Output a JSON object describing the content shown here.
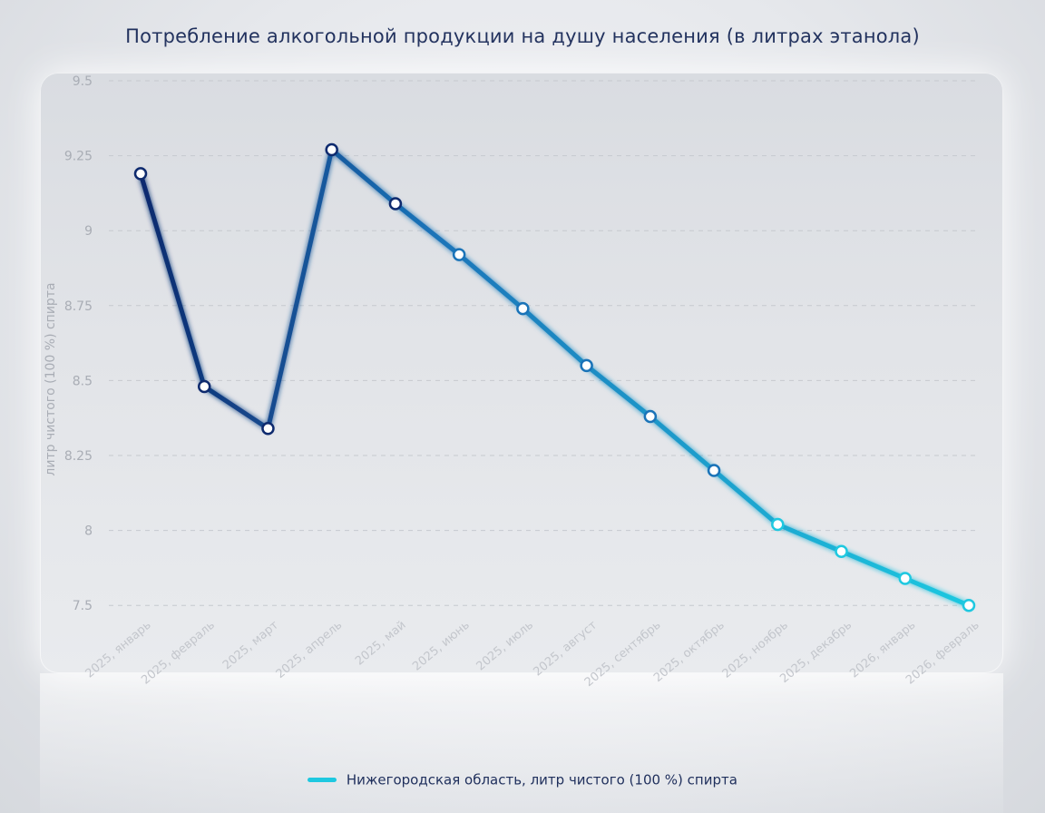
{
  "chart_data": {
    "type": "line",
    "title": "Потребление алкогольной продукции на душу населения (в литрах этанола)",
    "ylabel": "литр чистого (100 %) спирта",
    "xlabel": "",
    "categories": [
      "2025, январь",
      "2025, февраль",
      "2025, март",
      "2025, апрель",
      "2025, май",
      "2025, июнь",
      "2025, июль",
      "2025, август",
      "2025, сентябрь",
      "2025, октябрь",
      "2025, ноябрь",
      "2025, декабрь",
      "2026, январь",
      "2026, февраль"
    ],
    "yticks": [
      "9.5",
      "9.25",
      "9",
      "8.75",
      "8.5",
      "8.25",
      "8",
      "7.5"
    ],
    "series": [
      {
        "name": "Нижегородская область, литр чистого (100 %) спирта",
        "values": [
          9.19,
          8.48,
          8.34,
          9.27,
          9.09,
          8.92,
          8.74,
          8.55,
          8.38,
          8.2,
          8.02,
          7.93,
          7.84,
          7.75
        ]
      }
    ],
    "colors": {
      "start": "#0e2a6e",
      "mid": "#1a73b8",
      "end": "#1ec8e0"
    },
    "grid": true,
    "legend_position": "bottom-center"
  }
}
